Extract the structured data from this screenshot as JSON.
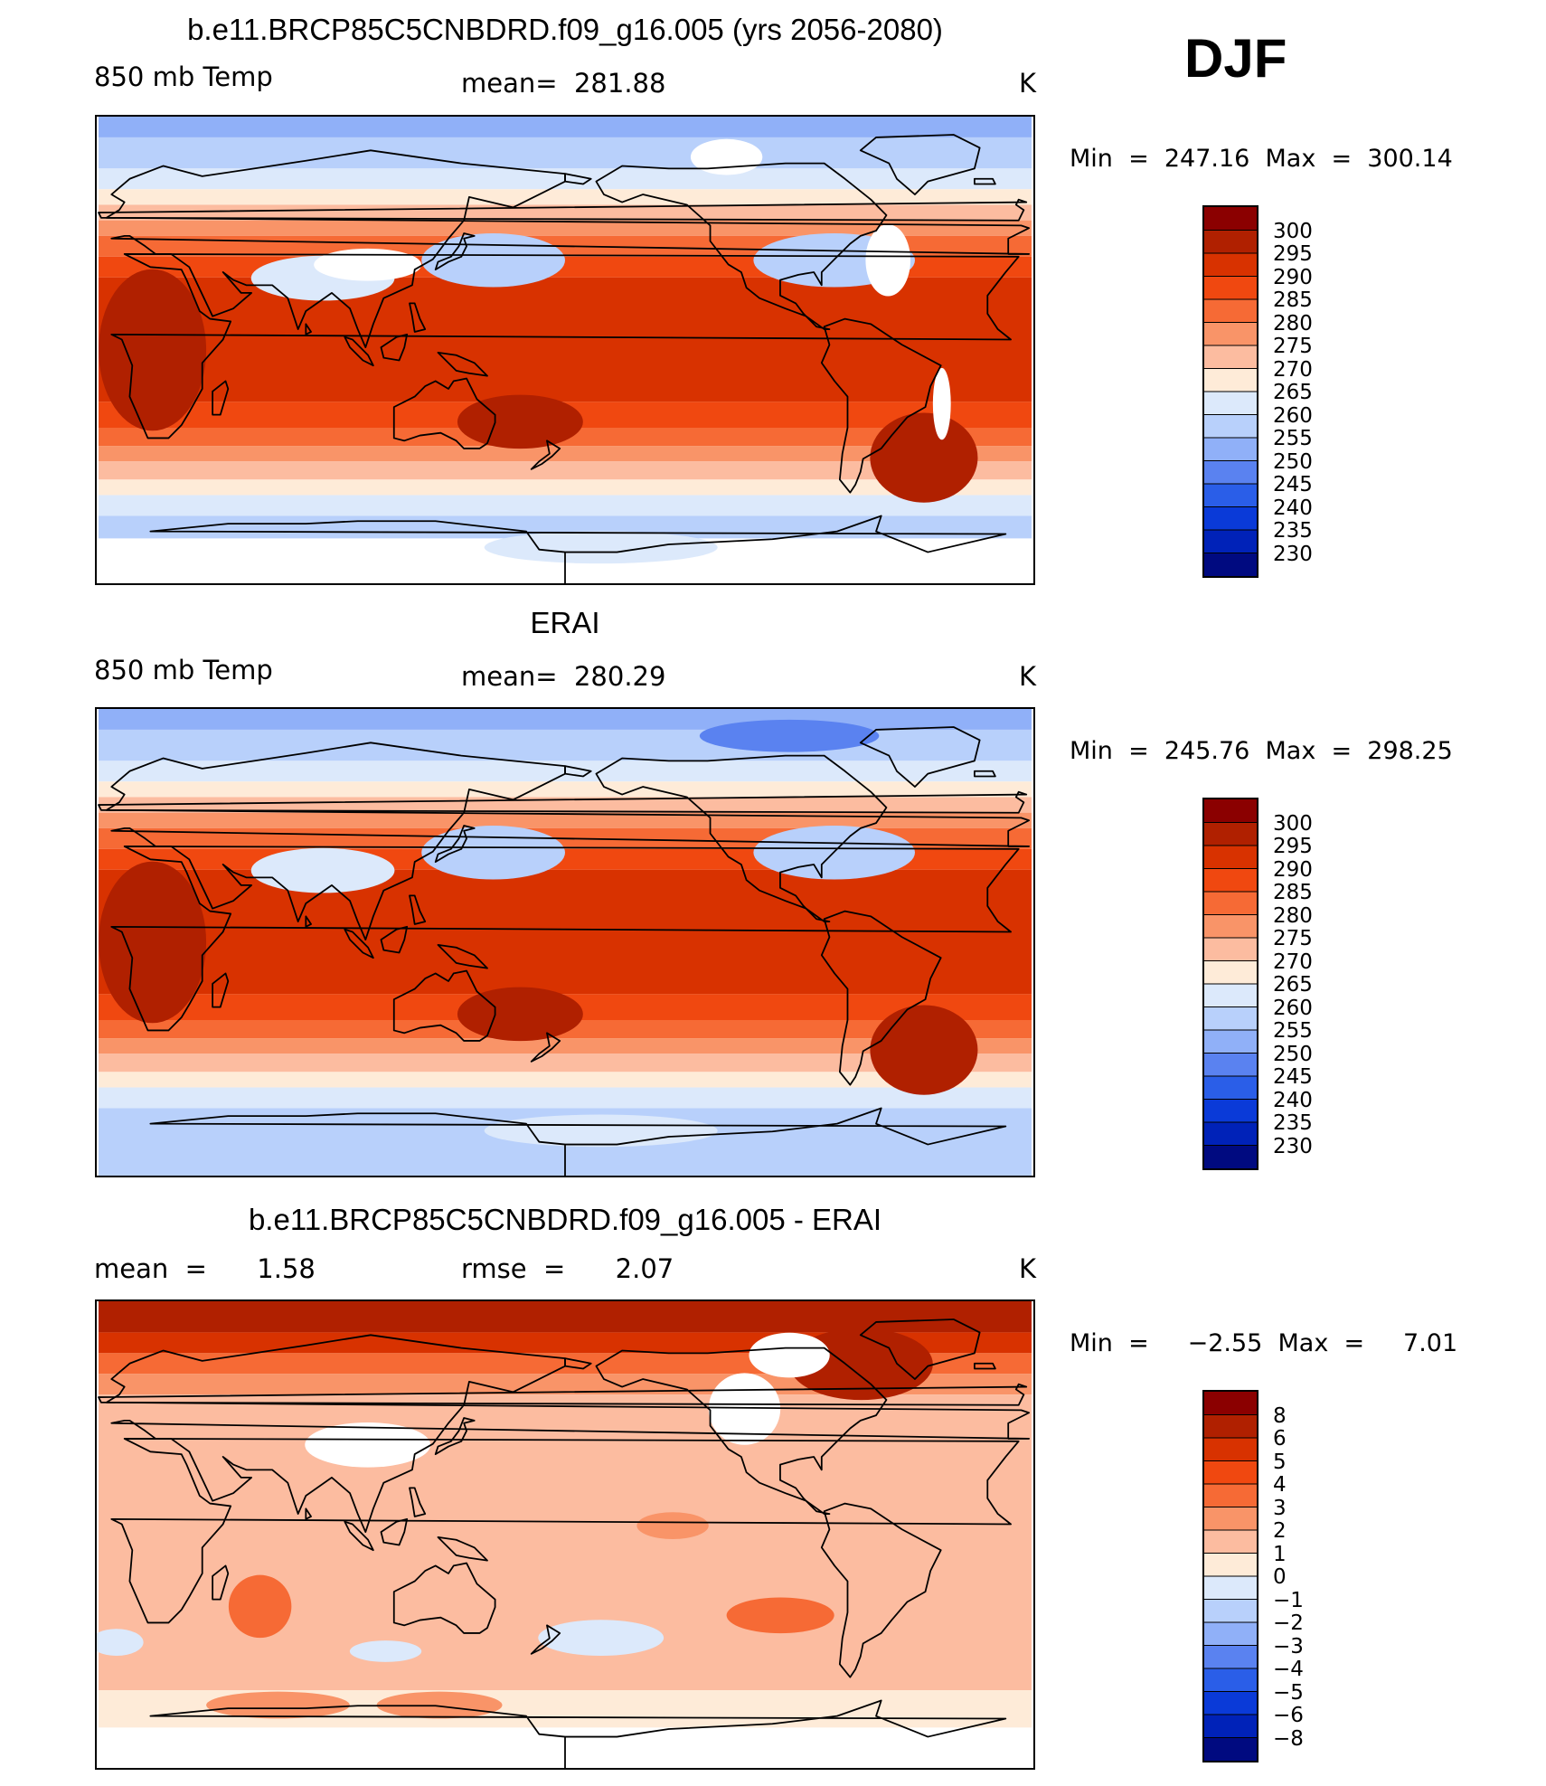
{
  "season": "DJF",
  "panels": [
    {
      "title": "b.e11.BRCP85C5CNBDRD.f09_g16.005 (yrs 2056-2080)",
      "left_label": "850 mb Temp",
      "center_label": "mean=  281.88",
      "units": "K",
      "min_max": "Min  =  247.16  Max  =  300.14",
      "kind": "abs"
    },
    {
      "title": "ERAI",
      "left_label": "850 mb Temp",
      "center_label": "mean=  280.29",
      "units": "K",
      "min_max": "Min  =  245.76  Max  =  298.25",
      "kind": "abs"
    },
    {
      "title": "b.e11.BRCP85C5CNBDRD.f09_g16.005 - ERAI",
      "left_label": "mean  =      1.58",
      "center_label": "rmse  =      2.07",
      "units": "K",
      "min_max": "Min  =     −2.55  Max  =     7.01",
      "kind": "diff"
    }
  ],
  "legend_abs": {
    "labels": [
      "300",
      "295",
      "290",
      "285",
      "280",
      "275",
      "270",
      "265",
      "260",
      "255",
      "250",
      "245",
      "240",
      "235",
      "230"
    ],
    "colors": [
      "#8b0000",
      "#b02000",
      "#d83200",
      "#f04810",
      "#f66a35",
      "#f99468",
      "#fcbca0",
      "#feebd8",
      "#dce9fb",
      "#b8d0fb",
      "#90b0f8",
      "#5a82f0",
      "#2a5ee8",
      "#0a3ad8",
      "#0022b8",
      "#000a80"
    ]
  },
  "legend_diff": {
    "labels": [
      "8",
      "6",
      "5",
      "4",
      "3",
      "2",
      "1",
      "0",
      "−1",
      "−2",
      "−3",
      "−4",
      "−5",
      "−6",
      "−8"
    ],
    "colors": [
      "#8b0000",
      "#b02000",
      "#d83200",
      "#f04810",
      "#f66a35",
      "#f99468",
      "#fcbca0",
      "#feebd8",
      "#dce9fb",
      "#b8d0fb",
      "#90b0f8",
      "#5a82f0",
      "#2a5ee8",
      "#0a3ad8",
      "#0022b8",
      "#000a80"
    ]
  }
}
